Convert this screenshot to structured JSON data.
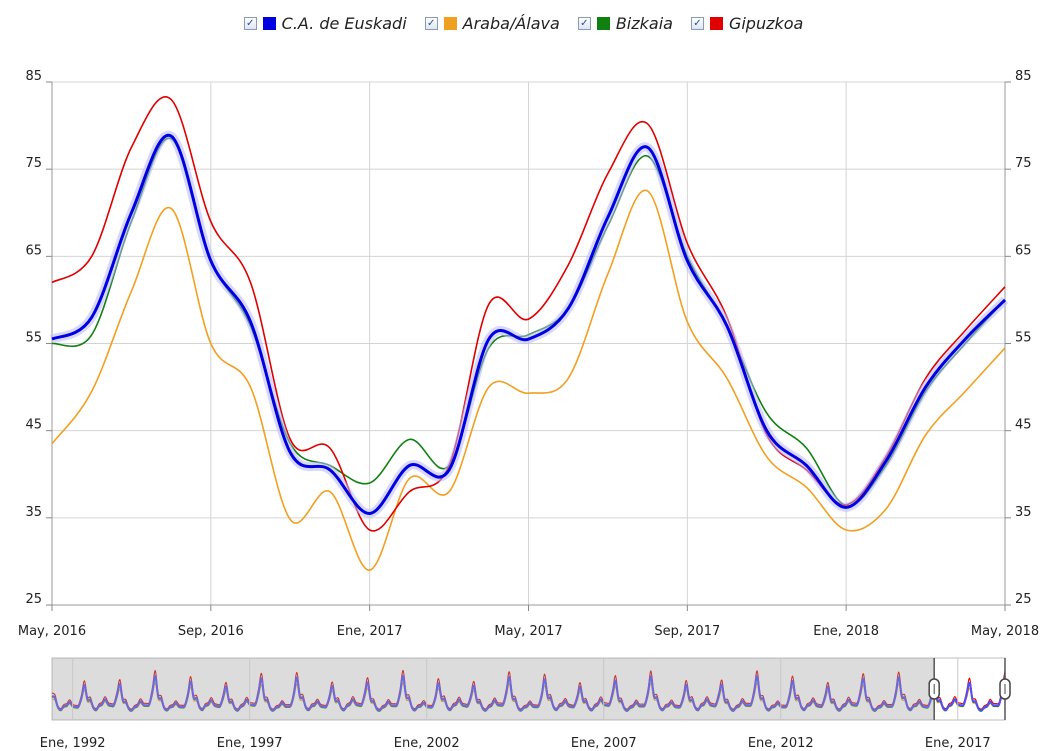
{
  "legend": {
    "items": [
      {
        "label": "C.A. de Euskadi",
        "color": "#0000e0",
        "checked": true,
        "checkmark": "✓"
      },
      {
        "label": "Araba/Álava",
        "color": "#f0a020",
        "checked": true,
        "checkmark": "✓"
      },
      {
        "label": "Bizkaia",
        "color": "#108010",
        "checked": true,
        "checkmark": "✓"
      },
      {
        "label": "Gipuzkoa",
        "color": "#e00000",
        "checked": true,
        "checkmark": "✓"
      }
    ]
  },
  "chart_data": {
    "type": "line",
    "x_ticks": [
      "May, 2016",
      "Sep, 2016",
      "Ene, 2017",
      "May, 2017",
      "Sep, 2017",
      "Ene, 2018",
      "May, 2018"
    ],
    "x_start": "2016-05",
    "x_end": "2018-05",
    "ylim": [
      25,
      85
    ],
    "y_ticks": [
      25,
      35,
      45,
      55,
      65,
      75,
      85
    ],
    "grid": true,
    "legend_position": "top",
    "series": [
      {
        "name": "C.A. de Euskadi",
        "color": "#0000e0",
        "points": [
          [
            "2016-05",
            55.5
          ],
          [
            "2016-06",
            58
          ],
          [
            "2016-07",
            70
          ],
          [
            "2016-08",
            78.8
          ],
          [
            "2016-09",
            64.5
          ],
          [
            "2016-10",
            57.5
          ],
          [
            "2016-11",
            42.5
          ],
          [
            "2016-12",
            40.5
          ],
          [
            "2017-01",
            35.5
          ],
          [
            "2017-02",
            41
          ],
          [
            "2017-03",
            40.5
          ],
          [
            "2017-04",
            55.5
          ],
          [
            "2017-05",
            55.5
          ],
          [
            "2017-06",
            59
          ],
          [
            "2017-07",
            69.5
          ],
          [
            "2017-08",
            77.5
          ],
          [
            "2017-09",
            64.5
          ],
          [
            "2017-10",
            57
          ],
          [
            "2017-11",
            45
          ],
          [
            "2017-12",
            41
          ],
          [
            "2018-01",
            36.2
          ],
          [
            "2018-02",
            41.5
          ],
          [
            "2018-03",
            50
          ],
          [
            "2018-04",
            55.5
          ],
          [
            "2018-05",
            60
          ]
        ]
      },
      {
        "name": "Araba/Álava",
        "color": "#f0a020",
        "points": [
          [
            "2016-05",
            43.5
          ],
          [
            "2016-06",
            49.5
          ],
          [
            "2016-07",
            61
          ],
          [
            "2016-08",
            70.5
          ],
          [
            "2016-09",
            55
          ],
          [
            "2016-10",
            50
          ],
          [
            "2016-11",
            34.8
          ],
          [
            "2016-12",
            38
          ],
          [
            "2017-01",
            29
          ],
          [
            "2017-02",
            39.5
          ],
          [
            "2017-03",
            38
          ],
          [
            "2017-04",
            50
          ],
          [
            "2017-05",
            49.3
          ],
          [
            "2017-06",
            51
          ],
          [
            "2017-07",
            63
          ],
          [
            "2017-08",
            72.5
          ],
          [
            "2017-09",
            57.5
          ],
          [
            "2017-10",
            51
          ],
          [
            "2017-11",
            42
          ],
          [
            "2017-12",
            38.5
          ],
          [
            "2018-01",
            33.6
          ],
          [
            "2018-02",
            36
          ],
          [
            "2018-03",
            44.5
          ],
          [
            "2018-04",
            49.5
          ],
          [
            "2018-05",
            54.5
          ]
        ]
      },
      {
        "name": "Bizkaia",
        "color": "#108010",
        "points": [
          [
            "2016-05",
            55
          ],
          [
            "2016-06",
            56
          ],
          [
            "2016-07",
            69
          ],
          [
            "2016-08",
            78.5
          ],
          [
            "2016-09",
            64.5
          ],
          [
            "2016-10",
            57
          ],
          [
            "2016-11",
            43.5
          ],
          [
            "2016-12",
            41
          ],
          [
            "2017-01",
            39
          ],
          [
            "2017-02",
            44
          ],
          [
            "2017-03",
            41
          ],
          [
            "2017-04",
            54.5
          ],
          [
            "2017-05",
            56
          ],
          [
            "2017-06",
            59
          ],
          [
            "2017-07",
            68.5
          ],
          [
            "2017-08",
            76.5
          ],
          [
            "2017-09",
            65
          ],
          [
            "2017-10",
            57
          ],
          [
            "2017-11",
            47
          ],
          [
            "2017-12",
            43
          ],
          [
            "2018-01",
            36.4
          ],
          [
            "2018-02",
            41
          ],
          [
            "2018-03",
            49.5
          ],
          [
            "2018-04",
            55
          ],
          [
            "2018-05",
            60
          ]
        ]
      },
      {
        "name": "Gipuzkoa",
        "color": "#e00000",
        "points": [
          [
            "2016-05",
            62
          ],
          [
            "2016-06",
            65
          ],
          [
            "2016-07",
            77.5
          ],
          [
            "2016-08",
            83
          ],
          [
            "2016-09",
            69
          ],
          [
            "2016-10",
            62
          ],
          [
            "2016-11",
            44
          ],
          [
            "2016-12",
            43
          ],
          [
            "2017-01",
            33.6
          ],
          [
            "2017-02",
            38
          ],
          [
            "2017-03",
            41
          ],
          [
            "2017-04",
            59.5
          ],
          [
            "2017-05",
            57.8
          ],
          [
            "2017-06",
            64
          ],
          [
            "2017-07",
            74.5
          ],
          [
            "2017-08",
            80.2
          ],
          [
            "2017-09",
            66.5
          ],
          [
            "2017-10",
            58
          ],
          [
            "2017-11",
            44.5
          ],
          [
            "2017-12",
            40.5
          ],
          [
            "2018-01",
            36.5
          ],
          [
            "2018-02",
            42
          ],
          [
            "2018-03",
            51
          ],
          [
            "2018-04",
            56.5
          ],
          [
            "2018-05",
            61.5
          ]
        ]
      }
    ],
    "navigator": {
      "x_ticks": [
        "Ene, 1992",
        "Ene, 1997",
        "Ene, 2002",
        "Ene, 2007",
        "Ene, 2012",
        "Ene, 2017"
      ],
      "x_start": "1991-06",
      "x_end": "2018-05",
      "selection": [
        "2016-05",
        "2018-05"
      ]
    }
  }
}
